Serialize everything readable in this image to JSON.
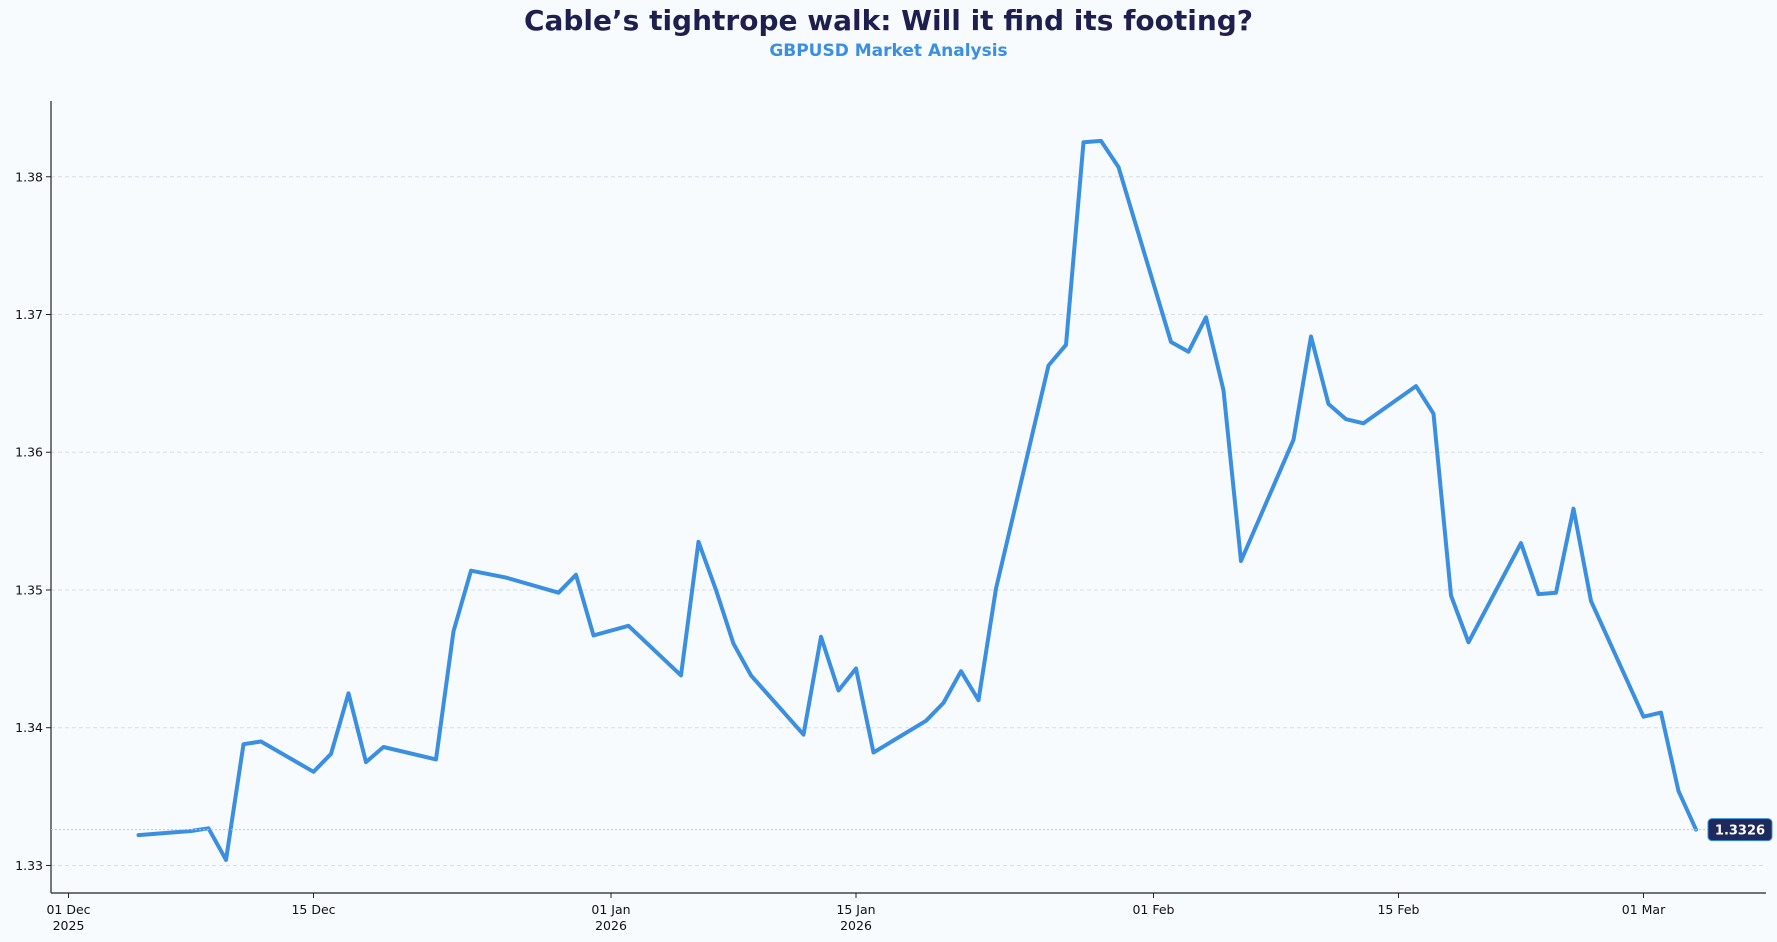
{
  "chart_data": {
    "type": "line",
    "title": "Cable’s tightrope walk: Will it find its footing?",
    "subtitle": "GBPUSD Market Analysis",
    "xlabel": "",
    "ylabel": "",
    "ylim": [
      1.328,
      1.3855
    ],
    "x_start": "2025-11-30",
    "x_end": "2026-03-08",
    "x_ticks": [
      {
        "date": "2025-12-01",
        "label": "01 Dec",
        "year": "2025"
      },
      {
        "date": "2025-12-15",
        "label": "15 Dec",
        "year": ""
      },
      {
        "date": "2026-01-01",
        "label": "01 Jan",
        "year": "2026"
      },
      {
        "date": "2026-01-15",
        "label": "15 Jan",
        "year": "2026"
      },
      {
        "date": "2026-02-01",
        "label": "01 Feb",
        "year": ""
      },
      {
        "date": "2026-02-15",
        "label": "15 Feb",
        "year": ""
      },
      {
        "date": "2026-03-01",
        "label": "01 Mar",
        "year": ""
      }
    ],
    "y_ticks": [
      1.33,
      1.34,
      1.35,
      1.36,
      1.37,
      1.38
    ],
    "y_tick_labels": [
      "1.33",
      "1.34",
      "1.35",
      "1.36",
      "1.37",
      "1.38"
    ],
    "grid": "horizontal-dashed",
    "series": [
      {
        "name": "GBPUSD",
        "color": "#3b8fe0",
        "points": [
          [
            "2025-12-05",
            1.3322
          ],
          [
            "2025-12-08",
            1.3325
          ],
          [
            "2025-12-09",
            1.3327
          ],
          [
            "2025-12-10",
            1.3304
          ],
          [
            "2025-12-11",
            1.3388
          ],
          [
            "2025-12-12",
            1.339
          ],
          [
            "2025-12-15",
            1.3368
          ],
          [
            "2025-12-16",
            1.3381
          ],
          [
            "2025-12-17",
            1.3425
          ],
          [
            "2025-12-18",
            1.3375
          ],
          [
            "2025-12-19",
            1.3386
          ],
          [
            "2025-12-22",
            1.3377
          ],
          [
            "2025-12-23",
            1.347
          ],
          [
            "2025-12-24",
            1.3514
          ],
          [
            "2025-12-26",
            1.3509
          ],
          [
            "2025-12-29",
            1.3498
          ],
          [
            "2025-12-30",
            1.3511
          ],
          [
            "2025-12-31",
            1.3467
          ],
          [
            "2026-01-02",
            1.3474
          ],
          [
            "2026-01-05",
            1.3438
          ],
          [
            "2026-01-06",
            1.3535
          ],
          [
            "2026-01-07",
            1.35
          ],
          [
            "2026-01-08",
            1.3461
          ],
          [
            "2026-01-09",
            1.3438
          ],
          [
            "2026-01-12",
            1.3395
          ],
          [
            "2026-01-13",
            1.3466
          ],
          [
            "2026-01-14",
            1.3427
          ],
          [
            "2026-01-15",
            1.3443
          ],
          [
            "2026-01-16",
            1.3382
          ],
          [
            "2026-01-19",
            1.3405
          ],
          [
            "2026-01-20",
            1.3418
          ],
          [
            "2026-01-21",
            1.3441
          ],
          [
            "2026-01-22",
            1.342
          ],
          [
            "2026-01-23",
            1.3501
          ],
          [
            "2026-01-26",
            1.3663
          ],
          [
            "2026-01-27",
            1.3678
          ],
          [
            "2026-01-28",
            1.3825
          ],
          [
            "2026-01-29",
            1.3826
          ],
          [
            "2026-01-30",
            1.3807
          ],
          [
            "2026-02-02",
            1.368
          ],
          [
            "2026-02-03",
            1.3673
          ],
          [
            "2026-02-04",
            1.3698
          ],
          [
            "2026-02-05",
            1.3645
          ],
          [
            "2026-02-06",
            1.3521
          ],
          [
            "2026-02-09",
            1.3609
          ],
          [
            "2026-02-10",
            1.3684
          ],
          [
            "2026-02-11",
            1.3635
          ],
          [
            "2026-02-12",
            1.3624
          ],
          [
            "2026-02-13",
            1.3621
          ],
          [
            "2026-02-16",
            1.3648
          ],
          [
            "2026-02-17",
            1.3628
          ],
          [
            "2026-02-18",
            1.3496
          ],
          [
            "2026-02-19",
            1.3462
          ],
          [
            "2026-02-22",
            1.3534
          ],
          [
            "2026-02-23",
            1.3497
          ],
          [
            "2026-02-24",
            1.3498
          ],
          [
            "2026-02-25",
            1.3559
          ],
          [
            "2026-02-26",
            1.3492
          ],
          [
            "2026-03-01",
            1.3408
          ],
          [
            "2026-03-02",
            1.3411
          ],
          [
            "2026-03-03",
            1.3354
          ],
          [
            "2026-03-04",
            1.3326
          ]
        ]
      }
    ],
    "last_value_label": "1.3326",
    "last_value_badge_color": "#1f2a5c"
  }
}
